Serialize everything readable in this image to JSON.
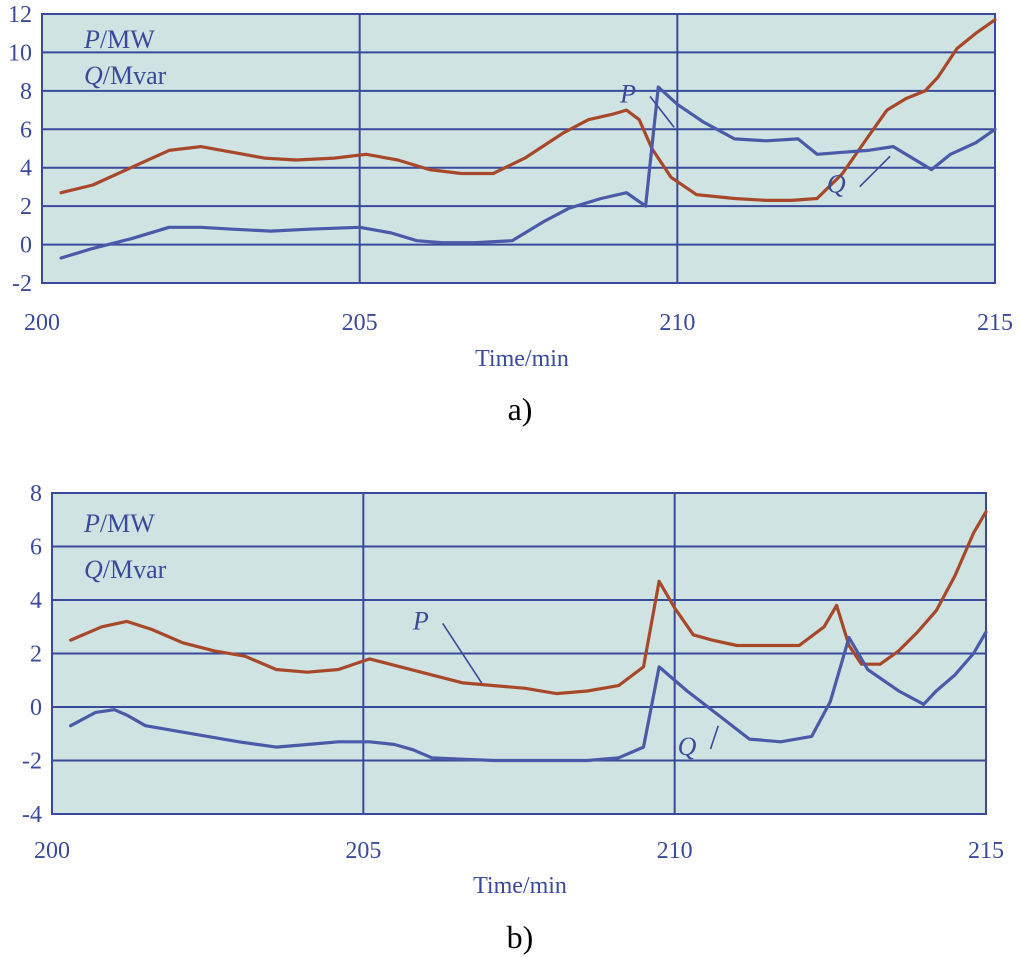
{
  "colors": {
    "plot_bg": "#cfe3e2",
    "grid": "#3a4a9a",
    "P": "#a8482a",
    "Q": "#4a5aa8",
    "text": "#3a4a9a"
  },
  "chart_data": [
    {
      "type": "line",
      "panel_label": "a)",
      "xlabel": "Time/min",
      "legend": {
        "p_var": "P",
        "p_unit": "/MW",
        "q_var": "Q",
        "q_unit": "/Mvar"
      },
      "xlim": [
        200,
        215
      ],
      "ylim": [
        -2,
        12
      ],
      "xticks": [
        200,
        205,
        210,
        215
      ],
      "yticks": [
        -2,
        0,
        2,
        4,
        6,
        8,
        10,
        12
      ],
      "xgrid": [
        205,
        210
      ],
      "ygrid": [
        2,
        4,
        6,
        8,
        10
      ],
      "series": [
        {
          "name": "P",
          "color_key": "P",
          "x": [
            200.3,
            200.8,
            201.4,
            202.0,
            202.5,
            203.0,
            203.5,
            204.0,
            204.6,
            205.1,
            205.6,
            206.1,
            206.6,
            207.1,
            207.6,
            208.2,
            208.6,
            209.0,
            209.2,
            209.4,
            209.6,
            209.9,
            210.3,
            210.9,
            211.4,
            211.8,
            212.2,
            212.6,
            213.0,
            213.3,
            213.6,
            213.9,
            214.1,
            214.4,
            214.7,
            215.0
          ],
          "y": [
            2.7,
            3.1,
            4.0,
            4.9,
            5.1,
            4.8,
            4.5,
            4.4,
            4.5,
            4.7,
            4.4,
            3.9,
            3.7,
            3.7,
            4.5,
            5.8,
            6.5,
            6.8,
            7.0,
            6.5,
            5.0,
            3.5,
            2.6,
            2.4,
            2.3,
            2.3,
            2.4,
            3.7,
            5.6,
            7.0,
            7.6,
            8.0,
            8.7,
            10.2,
            11.0,
            11.7
          ]
        },
        {
          "name": "Q",
          "color_key": "Q",
          "x": [
            200.3,
            200.8,
            201.4,
            202.0,
            202.5,
            203.0,
            203.6,
            204.2,
            205.0,
            205.5,
            205.9,
            206.3,
            206.8,
            207.4,
            207.9,
            208.3,
            208.8,
            209.2,
            209.5,
            209.7,
            210.0,
            210.4,
            210.9,
            211.4,
            211.9,
            212.2,
            212.6,
            213.0,
            213.4,
            213.7,
            214.0,
            214.3,
            214.7,
            215.0
          ],
          "y": [
            -0.7,
            -0.2,
            0.3,
            0.9,
            0.9,
            0.8,
            0.7,
            0.8,
            0.9,
            0.6,
            0.2,
            0.1,
            0.1,
            0.2,
            1.2,
            1.9,
            2.4,
            2.7,
            2.0,
            8.2,
            7.3,
            6.4,
            5.5,
            5.4,
            5.5,
            4.7,
            4.8,
            4.9,
            5.1,
            4.5,
            3.9,
            4.7,
            5.3,
            6.0
          ]
        }
      ],
      "annotations": [
        {
          "text": "P",
          "target_series": "P",
          "label_at": [
            209.35,
            7.4
          ],
          "point_at": [
            209.95,
            6.1
          ]
        },
        {
          "text": "Q",
          "target_series": "Q",
          "label_at": [
            212.65,
            2.7
          ],
          "point_at": [
            213.35,
            4.6
          ]
        }
      ]
    },
    {
      "type": "line",
      "panel_label": "b)",
      "xlabel": "Time/min",
      "legend": {
        "p_var": "P",
        "p_unit": "/MW",
        "q_var": "Q",
        "q_unit": "/Mvar"
      },
      "xlim": [
        200,
        215
      ],
      "ylim": [
        -4,
        8
      ],
      "xticks": [
        200,
        205,
        210,
        215
      ],
      "yticks": [
        -4,
        -2,
        0,
        2,
        4,
        6,
        8
      ],
      "xgrid": [
        205,
        210
      ],
      "ygrid": [
        -2,
        0,
        2,
        4,
        6
      ],
      "series": [
        {
          "name": "P",
          "color_key": "P",
          "x": [
            200.3,
            200.8,
            201.2,
            201.6,
            202.1,
            202.6,
            203.1,
            203.6,
            204.1,
            204.6,
            205.1,
            205.6,
            206.1,
            206.6,
            207.1,
            207.6,
            208.1,
            208.6,
            209.1,
            209.5,
            209.75,
            210.0,
            210.3,
            210.6,
            211.0,
            211.5,
            212.0,
            212.4,
            212.6,
            212.8,
            213.0,
            213.3,
            213.6,
            213.9,
            214.2,
            214.5,
            214.8,
            215.0
          ],
          "y": [
            2.5,
            3.0,
            3.2,
            2.9,
            2.4,
            2.1,
            1.9,
            1.4,
            1.3,
            1.4,
            1.8,
            1.5,
            1.2,
            0.9,
            0.8,
            0.7,
            0.5,
            0.6,
            0.8,
            1.5,
            4.7,
            3.7,
            2.7,
            2.5,
            2.3,
            2.3,
            2.3,
            3.0,
            3.8,
            2.3,
            1.6,
            1.6,
            2.1,
            2.8,
            3.6,
            4.9,
            6.5,
            7.3
          ]
        },
        {
          "name": "Q",
          "color_key": "Q",
          "x": [
            200.3,
            200.7,
            201.0,
            201.2,
            201.5,
            202.0,
            202.5,
            203.0,
            203.6,
            204.1,
            204.6,
            205.1,
            205.5,
            205.8,
            206.1,
            206.6,
            207.1,
            207.6,
            208.1,
            208.6,
            209.1,
            209.5,
            209.75,
            210.2,
            210.7,
            211.2,
            211.7,
            212.2,
            212.5,
            212.8,
            213.1,
            213.6,
            214.0,
            214.2,
            214.5,
            214.8,
            215.0
          ],
          "y": [
            -0.7,
            -0.2,
            -0.1,
            -0.3,
            -0.7,
            -0.9,
            -1.1,
            -1.3,
            -1.5,
            -1.4,
            -1.3,
            -1.3,
            -1.4,
            -1.6,
            -1.9,
            -1.95,
            -2.0,
            -2.0,
            -2.0,
            -2.0,
            -1.9,
            -1.5,
            1.5,
            0.6,
            -0.3,
            -1.2,
            -1.3,
            -1.1,
            0.2,
            2.6,
            1.4,
            0.6,
            0.1,
            0.6,
            1.2,
            2.0,
            2.8
          ]
        }
      ],
      "annotations": [
        {
          "text": "P",
          "target_series": "P",
          "label_at": [
            206.05,
            2.9
          ],
          "point_at": [
            206.9,
            0.9
          ]
        },
        {
          "text": "Q",
          "target_series": "Q",
          "label_at": [
            210.35,
            -1.8
          ],
          "point_at": [
            210.7,
            -0.7
          ]
        }
      ]
    }
  ]
}
